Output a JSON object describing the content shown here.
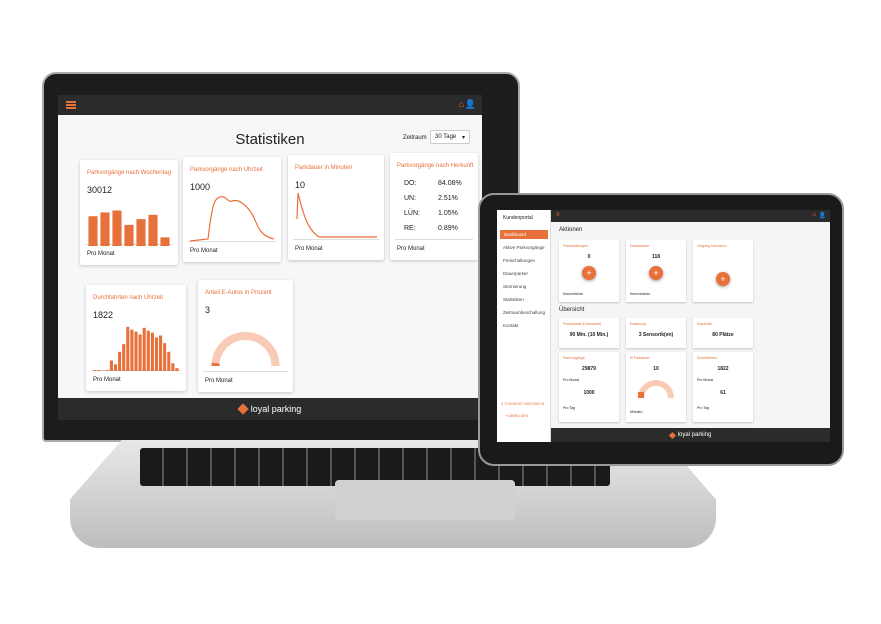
{
  "laptop": {
    "title": "Statistiken",
    "period_label": "Zeitraum",
    "period_value": "30 Tage",
    "brand": "loyal parking",
    "cards": [
      {
        "title": "Parkvorgänge nach Wochentag",
        "value": "30012",
        "footer": "Pro Monat",
        "bars": [
          62,
          70,
          74,
          44,
          56,
          65,
          18
        ]
      },
      {
        "title": "Parkvorgänge nach Uhrzeit",
        "value": "1000",
        "footer": "Pro Monat"
      },
      {
        "title": "Parkdauer in Minuten",
        "value": "10",
        "footer": "Pro Monat"
      },
      {
        "title": "Parkvorgänge nach Herkunft",
        "footer": "Pro Monat",
        "origins": [
          {
            "code": "DO:",
            "pct": "84.08%"
          },
          {
            "code": "UN:",
            "pct": "2.51%"
          },
          {
            "code": "LÜN:",
            "pct": "1.05%"
          },
          {
            "code": "RE:",
            "pct": "0.89%"
          }
        ]
      },
      {
        "title": "Durchfahrten nach Uhrzeit",
        "value": "1822",
        "footer": "Pro Monat",
        "bars": [
          2,
          2,
          1,
          2,
          22,
          14,
          40,
          56,
          92,
          86,
          82,
          76,
          90,
          84,
          80,
          70,
          74,
          58,
          40,
          16,
          6
        ]
      },
      {
        "title": "Anteil E-Autos in Prozent",
        "value": "3",
        "footer": "Pro Monat",
        "gauge_percent": 3
      }
    ]
  },
  "tablet": {
    "portal": "Kundenportal",
    "nav": [
      "Dashboard",
      "Aktive Parkvorgänge",
      "Freischaltungen",
      "Dauerparker",
      "Stornierung",
      "Statistiken",
      "Zeitraumbeschaltung",
      "Kontakt"
    ],
    "active_nav": "Dashboard",
    "location": "STANDORT WECHSELN",
    "logout": "ABMELDEN",
    "actions_heading": "Aktionen",
    "overview_heading": "Übersicht",
    "brand": "loyal parking",
    "actions": [
      {
        "title": "Freischaltungen",
        "value": "0",
        "footer": "Kennzeichen"
      },
      {
        "title": "Dauerparker",
        "value": "118",
        "footer": "Kennzeichen"
      },
      {
        "title": "Vorgang stornieren",
        "value": "",
        "footer": ""
      }
    ],
    "overview": [
      {
        "title": "Freiparkzeit (Karenzzeit)",
        "value": "90 Min. (10 Min.)"
      },
      {
        "title": "Erfassung",
        "value": "3 Sensorik(en)"
      },
      {
        "title": "Kapazität",
        "value": "80 Plätze"
      }
    ],
    "parkvorgaenge": {
      "title": "Parkvorgänge",
      "v1": "29879",
      "f1": "Pro Monat",
      "v2": "1000",
      "f2": "Pro Tag"
    },
    "parkdauer": {
      "title": "Ø Parkdauer",
      "value": "10",
      "footer": "Minuten",
      "gauge_percent": 8
    },
    "durchfahrten": {
      "title": "Durchfahrten",
      "v1": "1822",
      "f1": "Pro Monat",
      "v2": "61",
      "f2": "Pro Tag"
    }
  },
  "colors": {
    "accent": "#e8703a",
    "accent_light": "#f9cbb6",
    "bar": "#2b2b2b"
  }
}
